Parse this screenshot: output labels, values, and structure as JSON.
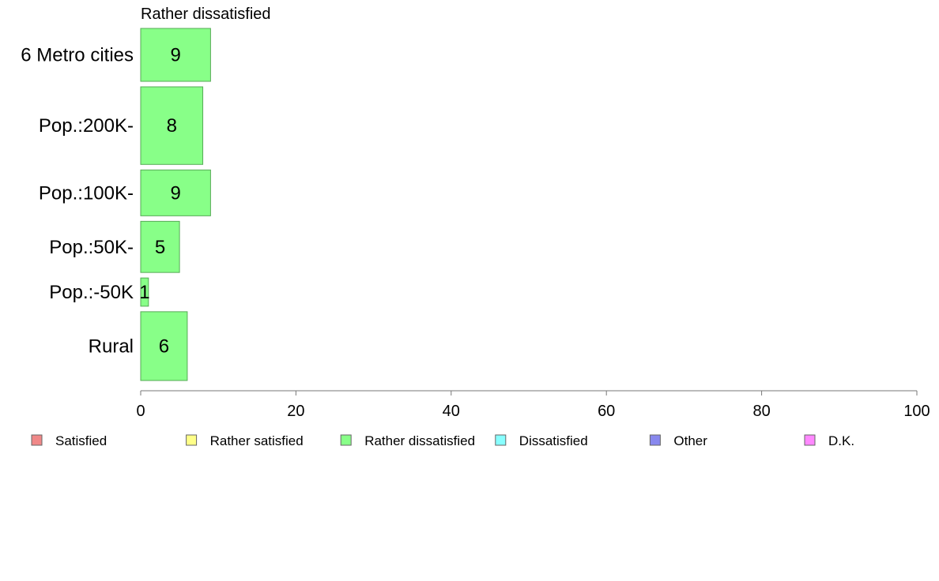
{
  "chart_data": {
    "type": "bar",
    "orientation": "horizontal",
    "title": "Rather dissatisfied",
    "categories": [
      "6 Metro cities",
      "Pop.:200K-",
      "Pop.:100K-",
      "Pop.:50K-",
      "Pop.:-50K",
      "Rural"
    ],
    "values": [
      9,
      8,
      9,
      5,
      1,
      6
    ],
    "bar_labels": [
      "9",
      "8",
      "9",
      "5",
      "1",
      "6"
    ],
    "relative_widths": [
      0.6,
      0.88,
      0.52,
      0.58,
      0.32,
      0.78
    ],
    "xlim": [
      0,
      100
    ],
    "xticks": [
      0,
      20,
      40,
      60,
      80,
      100
    ],
    "xtick_labels": [
      "0",
      "20",
      "40",
      "60",
      "80",
      "100"
    ],
    "xlabel": "",
    "ylabel": "",
    "grid": false,
    "bar_color": "#88ff88",
    "bar_stroke": "#55aa55",
    "legend_position": "bottom",
    "legend": [
      {
        "label": "Satisfied",
        "color": "#f08888"
      },
      {
        "label": "Rather satisfied",
        "color": "#ffff88"
      },
      {
        "label": "Rather dissatisfied",
        "color": "#88ff88"
      },
      {
        "label": "Dissatisfied",
        "color": "#88ffff"
      },
      {
        "label": "Other",
        "color": "#8888ee"
      },
      {
        "label": "D.K.",
        "color": "#ff88ff"
      }
    ]
  }
}
